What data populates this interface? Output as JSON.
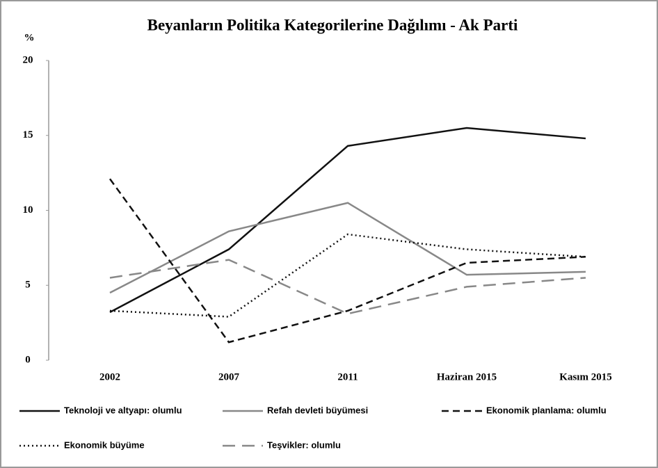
{
  "chart_data": {
    "type": "line",
    "title": "Beyanların Politika Kategorilerine Dağılımı - Ak Parti",
    "y_label": "%",
    "categories": [
      "2002",
      "2007",
      "2011",
      "Haziran 2015",
      "Kasım 2015"
    ],
    "series": [
      {
        "name": "Teknoloji ve altyapı: olumlu",
        "color": "#111111",
        "dash": "solid",
        "values": [
          3.2,
          7.4,
          14.3,
          15.5,
          14.8
        ]
      },
      {
        "name": "Refah devleti büyümesi",
        "color": "#888888",
        "dash": "solid",
        "values": [
          4.5,
          8.6,
          10.5,
          5.7,
          5.9
        ]
      },
      {
        "name": "Ekonomik planlama: olumlu",
        "color": "#111111",
        "dash": "dashed",
        "values": [
          12.1,
          1.2,
          3.3,
          6.5,
          6.9
        ]
      },
      {
        "name": "Ekonomik büyüme",
        "color": "#111111",
        "dash": "dotted",
        "values": [
          3.3,
          2.9,
          8.4,
          7.4,
          6.9
        ]
      },
      {
        "name": "Teşvikler: olumlu",
        "color": "#888888",
        "dash": "longdash",
        "values": [
          5.5,
          6.7,
          3.1,
          4.9,
          5.5
        ]
      }
    ],
    "ylim": [
      0,
      20
    ],
    "yticks": [
      0,
      5,
      10,
      15,
      20
    ],
    "grid": false,
    "legend": "bottom"
  }
}
